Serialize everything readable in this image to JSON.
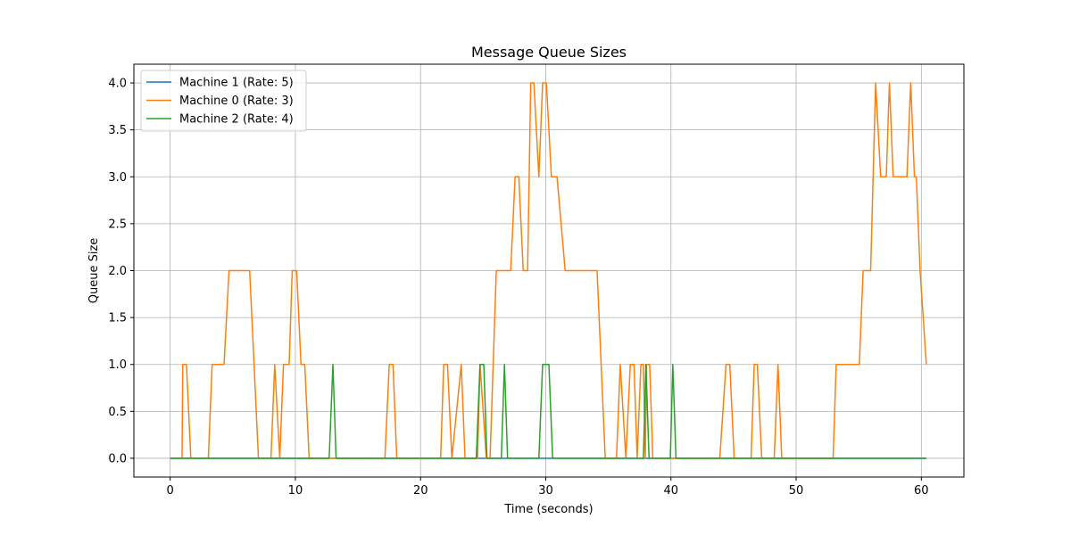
{
  "chart_data": {
    "type": "line",
    "title": "Message Queue Sizes",
    "xlabel": "Time (seconds)",
    "ylabel": "Queue Size",
    "xlim": [
      -2.9,
      63.4
    ],
    "ylim": [
      -0.2,
      4.2
    ],
    "xticks": [
      0,
      10,
      20,
      30,
      40,
      50,
      60
    ],
    "xtick_labels": [
      "0",
      "10",
      "20",
      "30",
      "40",
      "50",
      "60"
    ],
    "yticks": [
      0,
      0.5,
      1.0,
      1.5,
      2.0,
      2.5,
      3.0,
      3.5,
      4.0
    ],
    "ytick_labels": [
      "0.0",
      "0.5",
      "1.0",
      "1.5",
      "2.0",
      "2.5",
      "3.0",
      "3.5",
      "4.0"
    ],
    "grid": true,
    "legend_position": "upper-left",
    "series": [
      {
        "name": "Machine 1 (Rate: 5)",
        "color": "#1f77b4",
        "x": [
          0,
          60.4
        ],
        "y": [
          0,
          0
        ]
      },
      {
        "name": "Machine 0 (Rate: 3)",
        "color": "#ff7f0e",
        "x": [
          0,
          0.95,
          1.0,
          1.3,
          1.65,
          3.05,
          3.35,
          4.3,
          4.7,
          6.35,
          7.05,
          8.05,
          8.35,
          8.75,
          9.05,
          9.5,
          9.75,
          10.1,
          10.45,
          10.75,
          11.1,
          17.15,
          17.5,
          17.8,
          18.1,
          21.6,
          21.85,
          22.15,
          22.5,
          23.25,
          23.55,
          23.9,
          24.05,
          24.55,
          24.75,
          25.25,
          25.55,
          26.05,
          26.35,
          27.2,
          27.55,
          27.85,
          28.2,
          28.55,
          28.8,
          29.05,
          29.45,
          29.75,
          30.05,
          30.45,
          30.9,
          31.55,
          31.85,
          34.1,
          34.75,
          35.65,
          35.95,
          36.4,
          36.75,
          37.05,
          37.3,
          37.6,
          37.8,
          37.95,
          38.05,
          38.3,
          38.55,
          38.85,
          43.9,
          44.4,
          44.7,
          45.05,
          46.4,
          46.65,
          46.9,
          47.25,
          48.25,
          48.55,
          48.85,
          52.95,
          53.2,
          53.65,
          55.05,
          55.35,
          55.95,
          56.35,
          56.75,
          57.2,
          57.45,
          57.75,
          58.85,
          59.15,
          59.45,
          59.6,
          59.9,
          60.4
        ],
        "y": [
          0,
          0,
          1,
          1,
          0,
          0,
          1,
          1,
          2,
          2,
          0,
          0,
          1,
          0,
          1,
          1,
          2,
          2,
          1,
          1,
          0,
          0,
          1,
          1,
          0,
          0,
          1,
          1,
          0,
          1,
          0,
          0,
          0,
          0,
          1,
          0,
          0,
          2,
          2,
          2,
          3,
          3,
          2,
          2,
          4,
          4,
          3,
          4,
          4,
          3,
          3,
          2,
          2,
          2,
          0,
          0,
          1,
          0,
          1,
          1,
          0,
          1,
          1,
          0,
          1,
          1,
          0,
          0,
          0,
          1,
          1,
          0,
          0,
          1,
          1,
          0,
          0,
          1,
          0,
          0,
          1,
          1,
          1,
          2,
          2,
          4,
          3,
          3,
          4,
          3,
          3,
          4,
          3,
          3,
          2,
          1
        ]
      },
      {
        "name": "Machine 2 (Rate: 4)",
        "color": "#2ca02c",
        "x": [
          0,
          12.7,
          13.0,
          13.25,
          24.45,
          24.75,
          25.05,
          25.3,
          26.45,
          26.7,
          26.95,
          29.45,
          29.75,
          30.25,
          30.55,
          37.8,
          38.0,
          38.25,
          39.95,
          40.15,
          40.4,
          60.4
        ],
        "y": [
          0,
          0,
          1,
          0,
          0,
          1,
          1,
          0,
          0,
          1,
          0,
          0,
          1,
          1,
          0,
          0,
          1,
          0,
          0,
          1,
          0,
          0
        ]
      }
    ]
  }
}
